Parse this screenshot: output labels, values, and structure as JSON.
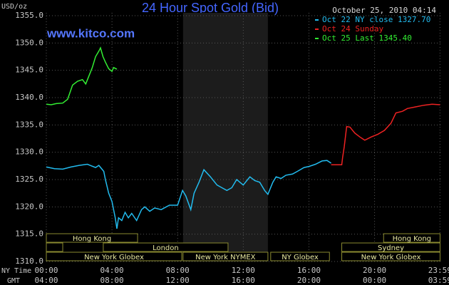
{
  "chart_data": {
    "type": "line",
    "title": "24 Hour Spot Gold (Bid)",
    "y_label": "USD/oz",
    "watermark": "www.kitco.com",
    "timestamp": "October 25, 2010 04:14",
    "x_label": "NY Time",
    "x2_label": "GMT",
    "xlim": [
      0,
      24.1
    ],
    "xticks": [
      {
        "value": 0,
        "label": "00:00"
      },
      {
        "value": 4,
        "label": "04:00"
      },
      {
        "value": 8,
        "label": "08:00"
      },
      {
        "value": 12,
        "label": "12:00"
      },
      {
        "value": 16,
        "label": "16:00"
      },
      {
        "value": 20,
        "label": "20:00"
      },
      {
        "value": 23.983,
        "label": "23:59"
      }
    ],
    "x2ticks": [
      {
        "value": 0,
        "label": "04:00"
      },
      {
        "value": 4,
        "label": "08:00"
      },
      {
        "value": 8,
        "label": "12:00"
      },
      {
        "value": 12,
        "label": "16:00"
      },
      {
        "value": 16,
        "label": "20:00"
      },
      {
        "value": 20,
        "label": "00:00"
      },
      {
        "value": 23.983,
        "label": "03:59"
      }
    ],
    "ylim": [
      1310,
      1355
    ],
    "yticks": [
      {
        "value": 1310,
        "label": "1310.0"
      },
      {
        "value": 1315,
        "label": "1315.0"
      },
      {
        "value": 1320,
        "label": "1320.0"
      },
      {
        "value": 1325,
        "label": "1325.0"
      },
      {
        "value": 1330,
        "label": "1330.0"
      },
      {
        "value": 1335,
        "label": "1335.0"
      },
      {
        "value": 1340,
        "label": "1340.0"
      },
      {
        "value": 1345,
        "label": "1345.0"
      },
      {
        "value": 1350,
        "label": "1350.0"
      },
      {
        "value": 1355,
        "label": "1355.0"
      }
    ],
    "grid": true,
    "series": [
      {
        "name": "Oct 22 NY close 1327.70",
        "color": "#22bbee",
        "x": [
          0,
          0.5,
          1,
          1.5,
          2,
          2.5,
          3,
          3.2,
          3.5,
          3.6,
          3.8,
          4,
          4.2,
          4.3,
          4.4,
          4.6,
          4.8,
          5,
          5.2,
          5.5,
          5.8,
          6,
          6.3,
          6.6,
          7,
          7.5,
          8,
          8.3,
          8.5,
          8.8,
          9,
          9.3,
          9.6,
          10,
          10.4,
          10.7,
          11,
          11.3,
          11.6,
          12,
          12.4,
          12.7,
          13,
          13.3,
          13.5,
          13.8,
          14,
          14.3,
          14.6,
          15,
          15.3,
          15.7,
          16,
          16.4,
          16.8,
          17.1,
          17.35
        ],
        "values": [
          1327.3,
          1327.0,
          1326.9,
          1327.3,
          1327.6,
          1327.8,
          1327.2,
          1327.6,
          1326.5,
          1325,
          1322.5,
          1321,
          1318,
          1316,
          1318,
          1317.5,
          1319,
          1318,
          1318.8,
          1317.5,
          1319.5,
          1320,
          1319.2,
          1319.8,
          1319.5,
          1320.3,
          1320.3,
          1323,
          1322,
          1319.5,
          1322.5,
          1324.5,
          1326.8,
          1325.5,
          1324,
          1323.5,
          1323,
          1323.5,
          1325,
          1324,
          1325.5,
          1324.8,
          1324.5,
          1323,
          1322.3,
          1324.5,
          1325.5,
          1325.2,
          1325.8,
          1326,
          1326.5,
          1327.2,
          1327.4,
          1327.8,
          1328.4,
          1328.5,
          1328
        ]
      },
      {
        "name": "Oct 24 Sunday",
        "color": "#ee2222",
        "x": [
          17.35,
          18,
          18.05,
          18.15,
          18.3,
          18.5,
          18.8,
          19.1,
          19.4,
          19.8,
          20.2,
          20.6,
          21,
          21.3,
          21.7,
          22,
          22.5,
          23,
          23.5,
          23.99
        ],
        "values": [
          1327.7,
          1327.7,
          1329,
          1331,
          1334.7,
          1334.6,
          1333.5,
          1332.8,
          1332.2,
          1332.8,
          1333.3,
          1334,
          1335.3,
          1337.2,
          1337.5,
          1338,
          1338.3,
          1338.6,
          1338.8,
          1338.7
        ]
      },
      {
        "name": "Oct 25 Last 1345.40",
        "color": "#33ee33",
        "x": [
          0,
          0.3,
          0.6,
          1,
          1.3,
          1.6,
          1.9,
          2.2,
          2.4,
          2.6,
          2.8,
          3,
          3.2,
          3.3,
          3.45,
          3.6,
          3.8,
          4,
          4.1,
          4.3
        ],
        "values": [
          1338.8,
          1338.7,
          1338.9,
          1339,
          1339.7,
          1342.3,
          1343,
          1343.3,
          1342.5,
          1344,
          1345.5,
          1347.5,
          1348.5,
          1349.1,
          1347.5,
          1346.5,
          1345.3,
          1344.8,
          1345.5,
          1345.2
        ]
      }
    ],
    "sessions": [
      [
        {
          "label": "Hong Kong",
          "start": 0,
          "end": 5.56
        },
        {
          "label": "Hong Kong",
          "start": 20.55,
          "end": 23.99
        }
      ],
      [
        {
          "label": null,
          "start": 0,
          "end": 1
        },
        {
          "label": "London",
          "start": 3.47,
          "end": 11.07
        },
        {
          "label": "Sydney",
          "start": 18,
          "end": 23.99
        }
      ],
      [
        {
          "label": "New York Globex",
          "start": 0,
          "end": 8.25
        },
        {
          "label": "New York NYMEX",
          "start": 8.33,
          "end": 13.5,
          "highlight": true
        },
        {
          "label": "NY Globex",
          "start": 13.67,
          "end": 17.25
        },
        {
          "label": "New York Globex",
          "start": 18,
          "end": 23.99
        }
      ]
    ]
  }
}
